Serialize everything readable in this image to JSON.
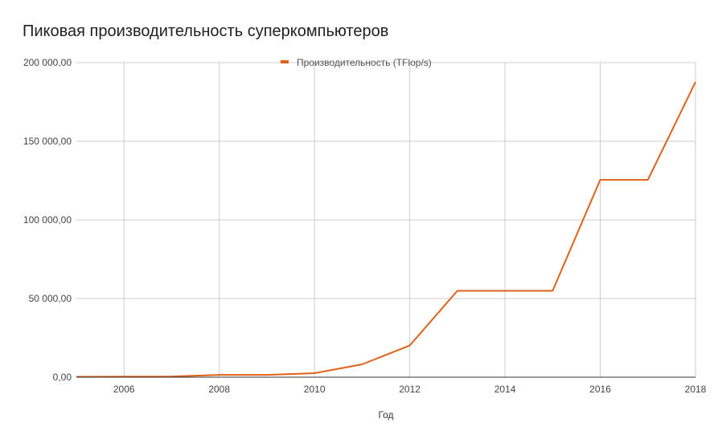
{
  "chart_data": {
    "type": "line",
    "title": "Пиковая производительность суперкомпьютеров",
    "xlabel": "Год",
    "ylabel": "",
    "x": [
      2005,
      2006,
      2007,
      2008,
      2009,
      2010,
      2011,
      2012,
      2013,
      2014,
      2015,
      2016,
      2017,
      2018
    ],
    "series": [
      {
        "name": "Производительность (TFlop/s)",
        "color": "#e0611a",
        "values": [
          280.6,
          367,
          478.2,
          1456.7,
          1456.7,
          2566,
          8162,
          20133,
          54902,
          54902,
          54902,
          125436,
          125436,
          187659
        ]
      }
    ],
    "xlim": [
      2005,
      2018
    ],
    "ylim": [
      0,
      200000
    ],
    "x_ticks": [
      "2006",
      "2008",
      "2010",
      "2012",
      "2014",
      "2016",
      "2018"
    ],
    "y_ticks": [
      "0,00",
      "50 000,00",
      "100 000,00",
      "150 000,00",
      "200 000,00"
    ],
    "grid": true,
    "legend_position": "top-center"
  }
}
